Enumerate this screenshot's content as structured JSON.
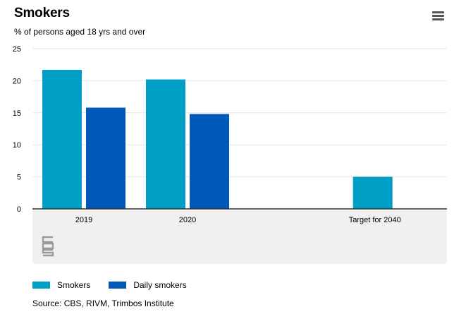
{
  "header": {
    "title": "Smokers",
    "subtitle": "% of persons aged 18 yrs and over",
    "menu_icon": "hamburger-menu-icon"
  },
  "logo": {
    "icon": "cbs-logo-icon"
  },
  "colors": {
    "smokers": "#009fc6",
    "daily_smokers": "#0058b8",
    "grid": "#e6e6e6",
    "axis": "#333333"
  },
  "chart_data": {
    "type": "bar",
    "categories": [
      "2019",
      "2020",
      "Target for 2040"
    ],
    "series": [
      {
        "name": "Smokers",
        "values": [
          21.7,
          20.2,
          5.0
        ]
      },
      {
        "name": "Daily smokers",
        "values": [
          15.8,
          14.8,
          null
        ]
      }
    ],
    "ylim": [
      0,
      25
    ],
    "yticks": [
      0,
      5,
      10,
      15,
      20,
      25
    ],
    "grid": true,
    "legend_position": "bottom-left"
  },
  "legend": [
    {
      "label": "Smokers"
    },
    {
      "label": "Daily smokers"
    }
  ],
  "source": "Source: CBS, RIVM, Trimbos Institute"
}
